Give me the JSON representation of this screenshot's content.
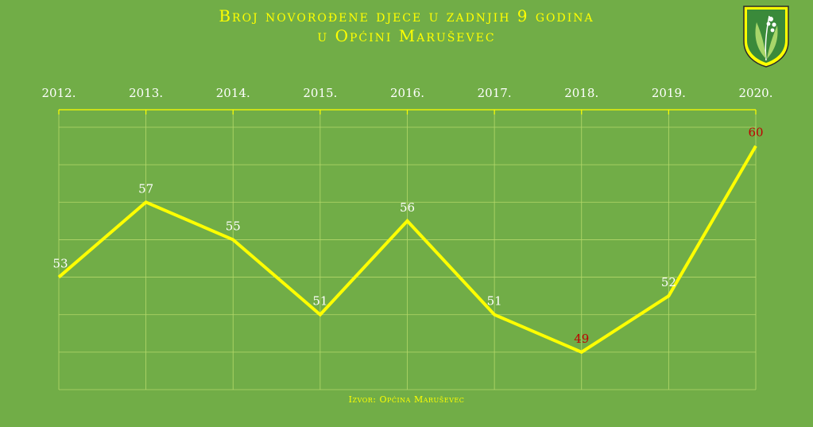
{
  "chart_data": {
    "type": "line",
    "title_lines": [
      "Broj novorođene djece u zadnjih 9 godina",
      "u Općini Maruševec"
    ],
    "categories": [
      "2012.",
      "2013.",
      "2014.",
      "2015.",
      "2016.",
      "2017.",
      "2018.",
      "2019.",
      "2020."
    ],
    "values": [
      53,
      57,
      55,
      51,
      56,
      51,
      49,
      52,
      60
    ],
    "data_labels": [
      "53",
      "57",
      "55",
      "51",
      "56",
      "51",
      "49",
      "52",
      "60"
    ],
    "highlight_colors": {
      "49": "#c00000",
      "60": "#c00000"
    },
    "ylim": [
      47,
      61
    ],
    "grid": true,
    "xaxis_position": "top",
    "line_color": "#ffff00",
    "label_color": "#ffffff",
    "source": "Izvor: Općina Maruševec"
  },
  "logo": {
    "name": "maruševec-coat-of-arms-icon"
  }
}
